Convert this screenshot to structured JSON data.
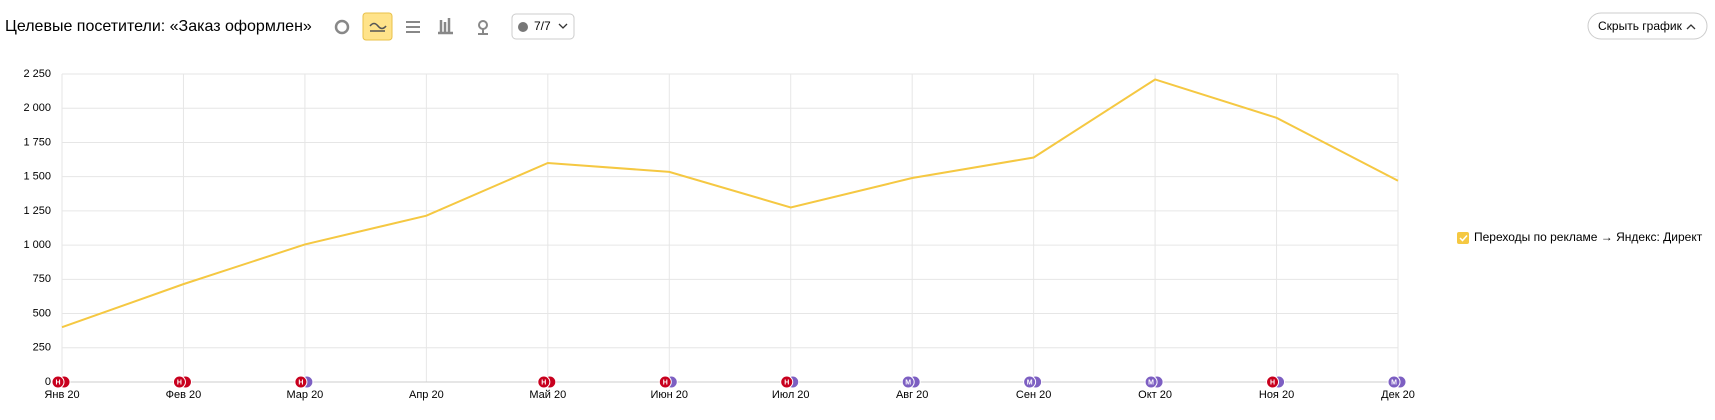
{
  "header": {
    "title": "Целевые посетители: «Заказ оформлен»",
    "notes_button": "7/7",
    "hide_button": "Скрыть график"
  },
  "chart_data": {
    "type": "line",
    "categories": [
      "Янв 20",
      "Фев 20",
      "Мар 20",
      "Апр 20",
      "Май 20",
      "Июн 20",
      "Июл 20",
      "Авг 20",
      "Сен 20",
      "Окт 20",
      "Ноя 20",
      "Дек 20"
    ],
    "series": [
      {
        "name": "Переходы по рекламе → Яндекс: Директ",
        "color": "#f5c842",
        "values": [
          400,
          715,
          1005,
          1215,
          1600,
          1535,
          1275,
          1490,
          1640,
          2210,
          1930,
          1470
        ]
      }
    ],
    "ylim": [
      0,
      2250
    ],
    "yticks": [
      0,
      250,
      500,
      750,
      {
        "value": 1000,
        "label": "1 000"
      },
      {
        "value": 1250,
        "label": "1 250"
      },
      {
        "value": 1500,
        "label": "1 500"
      },
      {
        "value": 1750,
        "label": "1 750"
      },
      {
        "value": 2000,
        "label": "2 000"
      },
      {
        "value": 2250,
        "label": "2 250"
      }
    ],
    "grid": true,
    "legend": "right",
    "event_markers": [
      {
        "label": "Н",
        "colors": [
          "#c8001e",
          "#c8001e"
        ]
      },
      {
        "label": "Н",
        "colors": [
          "#c8001e",
          "#c8001e"
        ]
      },
      {
        "label": "Н",
        "colors": [
          "#c8001e",
          "#7d5fc2"
        ]
      },
      null,
      {
        "label": "Н",
        "colors": [
          "#c8001e",
          "#c8001e"
        ]
      },
      {
        "label": "Н",
        "colors": [
          "#c8001e",
          "#7d5fc2"
        ]
      },
      {
        "label": "Н",
        "colors": [
          "#c8001e",
          "#7d5fc2"
        ]
      },
      {
        "label": "М",
        "colors": [
          "#7d5fc2",
          "#7d5fc2"
        ]
      },
      {
        "label": "М",
        "colors": [
          "#7d5fc2",
          "#7d5fc2"
        ]
      },
      {
        "label": "М",
        "colors": [
          "#7d5fc2",
          "#7d5fc2"
        ]
      },
      {
        "label": "Н",
        "colors": [
          "#c8001e",
          "#7d5fc2"
        ]
      },
      {
        "label": "М",
        "colors": [
          "#7d5fc2",
          "#7d5fc2"
        ]
      }
    ]
  }
}
